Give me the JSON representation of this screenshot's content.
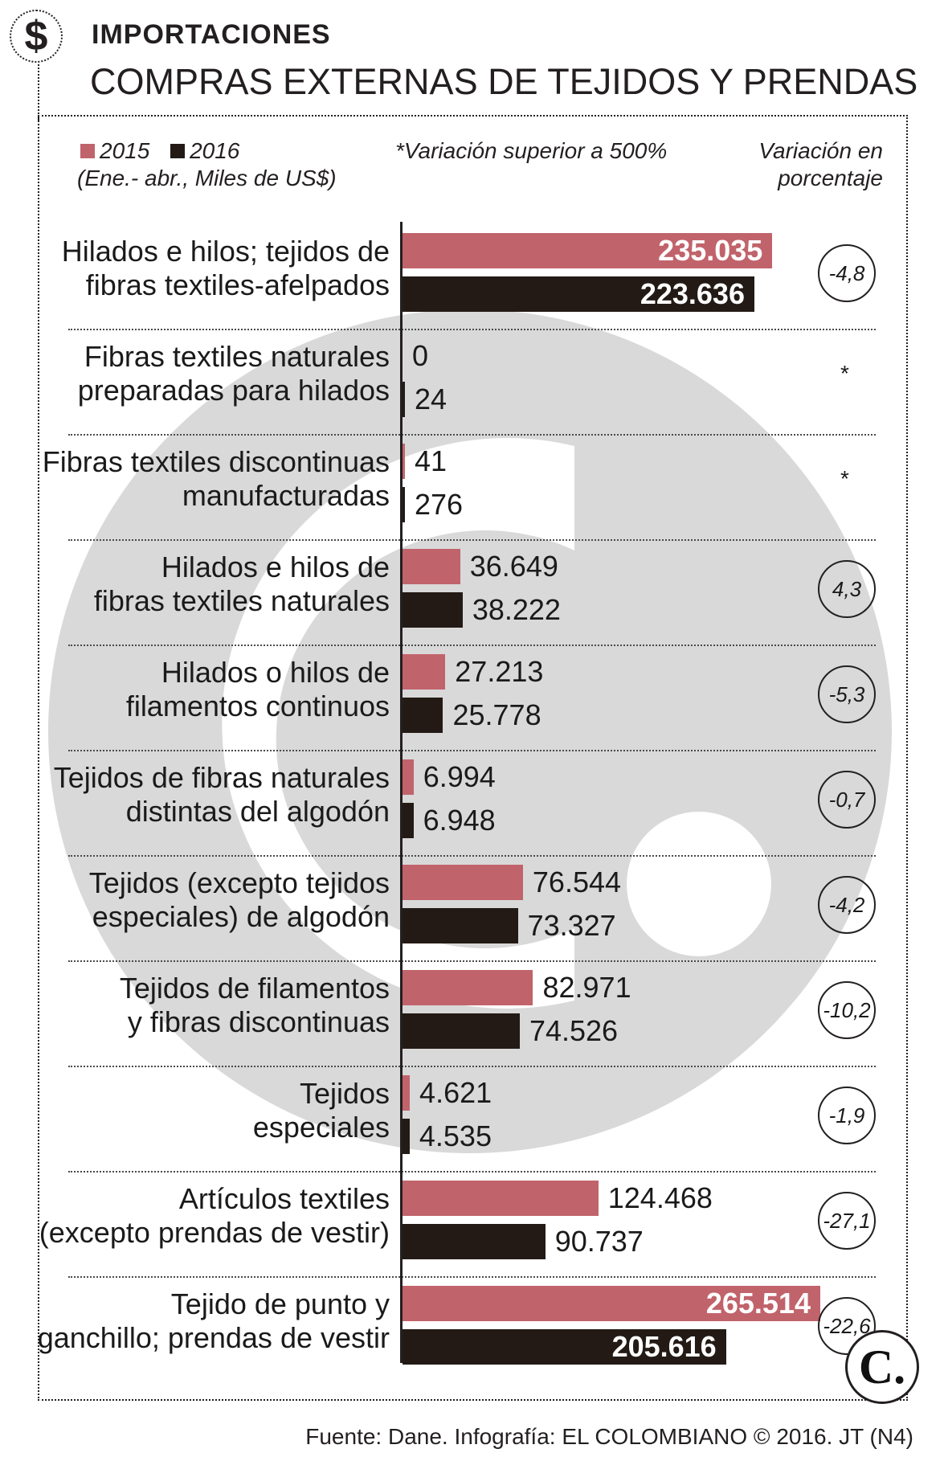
{
  "header": {
    "kicker": "IMPORTACIONES",
    "title": "COMPRAS EXTERNAS DE TEJIDOS Y PRENDAS"
  },
  "legend": {
    "series_2015": "2015",
    "series_2016": "2016",
    "period_note": "(Ene.- abr., Miles de US$)",
    "variation_note": "*Variación superior a 500%",
    "variation_header_line1": "Variación en",
    "variation_header_line2": "porcentaje"
  },
  "colors": {
    "c2015": "#c1636b",
    "c2016": "#231a15",
    "watermark": "#d9d9d9"
  },
  "icons": {
    "header": "dollar-icon",
    "logo": "el-colombiano-logo"
  },
  "chart_data": {
    "type": "bar",
    "orientation": "horizontal",
    "title": "COMPRAS EXTERNAS DE TEJIDOS Y PRENDAS",
    "unit": "Miles de US$",
    "categories": [
      [
        "Hilados e hilos; tejidos de",
        "fibras textiles-afelpados"
      ],
      [
        "Fibras textiles naturales",
        "preparadas para hilados"
      ],
      [
        "Fibras textiles discontinuas",
        "manufacturadas"
      ],
      [
        "Hilados e hilos de",
        "fibras textiles naturales"
      ],
      [
        "Hilados o hilos  de",
        "filamentos continuos"
      ],
      [
        "Tejidos de fibras naturales",
        "distintas del algodón"
      ],
      [
        "Tejidos (excepto tejidos",
        "especiales) de algodón"
      ],
      [
        "Tejidos de filamentos",
        "y fibras discontinuas"
      ],
      [
        "Tejidos",
        "especiales"
      ],
      [
        "Artículos textiles",
        "(excepto prendas de vestir)"
      ],
      [
        "Tejido de punto y",
        "ganchillo; prendas de vestir"
      ]
    ],
    "series": [
      {
        "name": "2015",
        "values": [
          235035,
          0,
          41,
          36649,
          27213,
          6994,
          76544,
          82971,
          4621,
          124468,
          265514
        ],
        "labels": [
          "235.035",
          "0",
          "41",
          "36.649",
          "27.213",
          "6.994",
          "76.544",
          "82.971",
          "4.621",
          "124.468",
          "265.514"
        ]
      },
      {
        "name": "2016",
        "values": [
          223636,
          24,
          276,
          38222,
          25778,
          6948,
          73327,
          74526,
          4535,
          90737,
          205616
        ],
        "labels": [
          "223.636",
          "24",
          "276",
          "38.222",
          "25.778",
          "6.948",
          "73.327",
          "74.526",
          "4.535",
          "90.737",
          "205.616"
        ]
      }
    ],
    "variation": [
      "-4,8",
      "*",
      "*",
      "4,3",
      "-5,3",
      "-0,7",
      "-4,2",
      "-10,2",
      "-1,9",
      "-27,1",
      "-22,6"
    ],
    "xlim": [
      0,
      265514
    ]
  },
  "footer": {
    "source": "Fuente: Dane. Infografía: EL COLOMBIANO © 2016. JT (N4)"
  }
}
